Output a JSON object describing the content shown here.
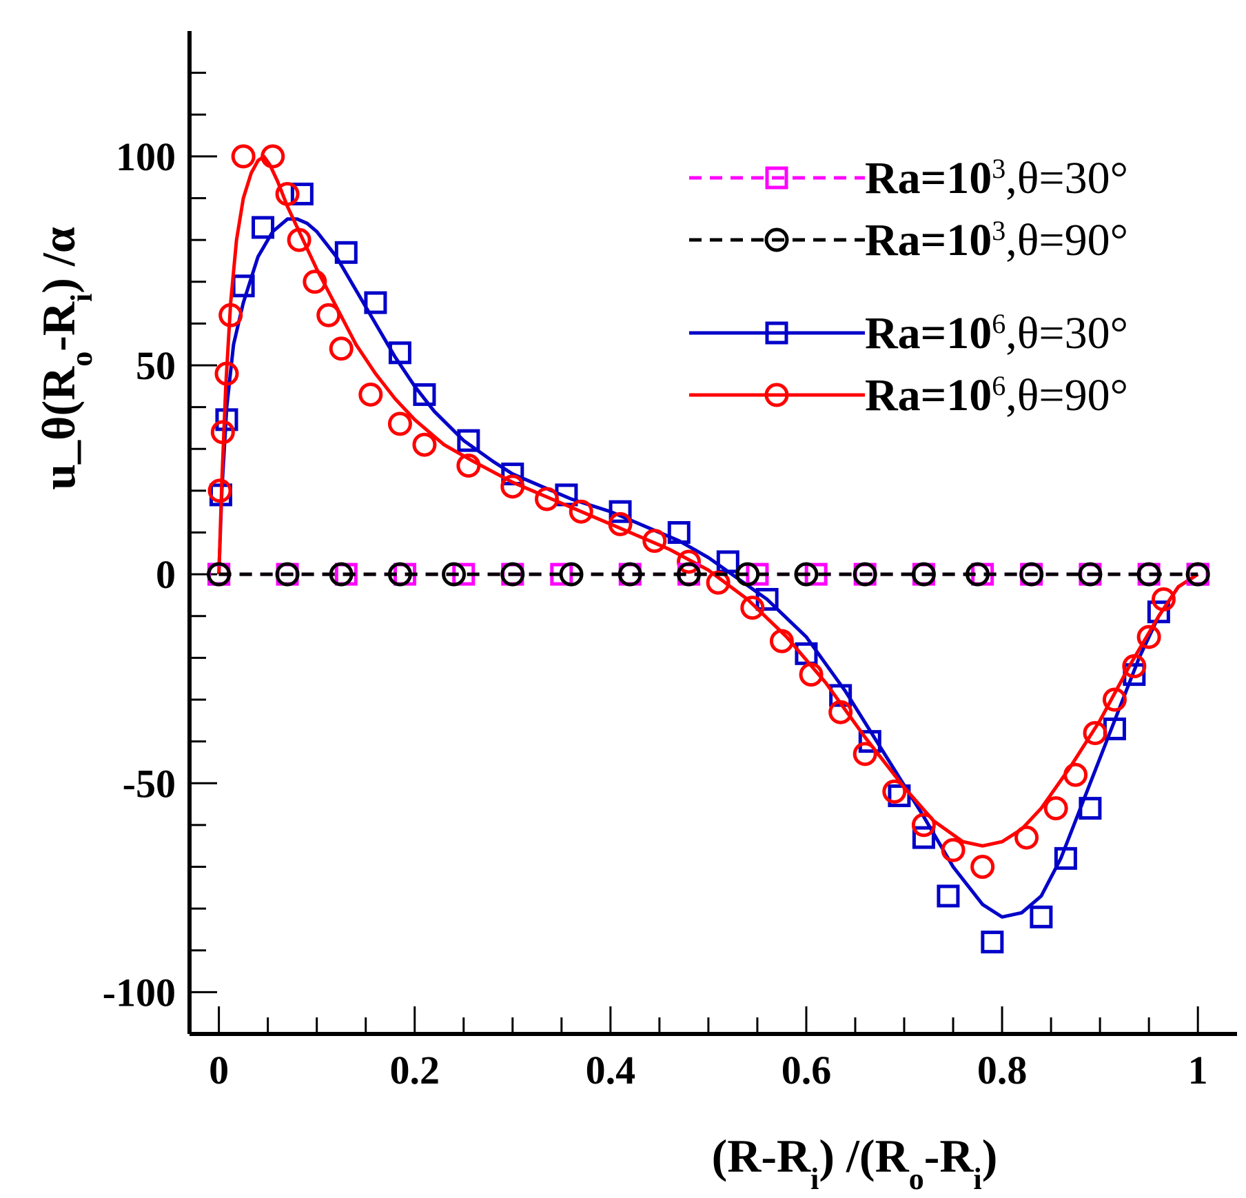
{
  "chart_data": {
    "type": "line",
    "xlabel": "(R-R_i) /(R_o-R_i)",
    "ylabel": "u_θ(R_o-R_i) /α",
    "xlim": [
      -0.03,
      1.04
    ],
    "ylim": [
      -110,
      130
    ],
    "x_ticks": [
      0,
      0.2,
      0.4,
      0.6,
      0.8,
      1
    ],
    "x_tick_labels": [
      "0",
      "0.2",
      "0.4",
      "0.6",
      "0.8",
      "1"
    ],
    "y_ticks": [
      -100,
      -50,
      0,
      50,
      100
    ],
    "y_tick_labels": [
      "-100",
      "-50",
      "0",
      "50",
      "100"
    ],
    "legend": [
      {
        "label_prefix": "Ra=10",
        "exponent": "3",
        "label_suffix": ",θ=30°",
        "series": "ra3_t30"
      },
      {
        "label_prefix": "Ra=10",
        "exponent": "3",
        "label_suffix": ",θ=90°",
        "series": "ra3_t90"
      },
      {
        "label_prefix": "Ra=10",
        "exponent": "6",
        "label_suffix": ",θ=30°",
        "series": "ra6_t30"
      },
      {
        "label_prefix": "Ra=10",
        "exponent": "6",
        "label_suffix": ",θ=90°",
        "series": "ra6_t90"
      }
    ],
    "series": [
      {
        "id": "ra3_t30",
        "name": "Ra=10^3,θ=30°",
        "color": "#ff00ff",
        "dash": "dashed",
        "marker": "square",
        "line_x": [
          0,
          1
        ],
        "line_y": [
          0,
          0
        ],
        "marker_x": [
          0,
          0.07,
          0.13,
          0.19,
          0.25,
          0.3,
          0.35,
          0.42,
          0.48,
          0.55,
          0.61,
          0.66,
          0.72,
          0.78,
          0.83,
          0.89,
          0.95,
          1.0
        ],
        "marker_y": [
          0,
          0,
          0,
          0,
          0,
          0,
          0,
          0,
          0,
          0,
          0,
          0,
          0,
          0,
          0,
          0,
          0,
          0
        ]
      },
      {
        "id": "ra3_t90",
        "name": "Ra=10^3,θ=90°",
        "color": "#000000",
        "dash": "dashed",
        "marker": "circle",
        "line_x": [
          0,
          1
        ],
        "line_y": [
          0,
          0
        ],
        "marker_x": [
          0,
          0.07,
          0.125,
          0.185,
          0.24,
          0.3,
          0.36,
          0.42,
          0.48,
          0.54,
          0.6,
          0.66,
          0.72,
          0.775,
          0.83,
          0.89,
          0.95,
          1.0
        ],
        "marker_y": [
          0,
          0,
          0,
          0,
          0,
          0,
          0,
          0,
          0,
          0,
          0,
          0,
          0,
          0,
          0,
          0,
          0,
          0
        ]
      },
      {
        "id": "ra6_t30",
        "name": "Ra=10^6,θ=30°",
        "color": "#0000c8",
        "dash": "solid",
        "marker": "square",
        "line_x": [
          0,
          0.003,
          0.008,
          0.015,
          0.025,
          0.04,
          0.055,
          0.07,
          0.08,
          0.09,
          0.1,
          0.12,
          0.14,
          0.16,
          0.18,
          0.2,
          0.22,
          0.25,
          0.28,
          0.3,
          0.33,
          0.36,
          0.4,
          0.44,
          0.47,
          0.5,
          0.53,
          0.56,
          0.6,
          0.64,
          0.68,
          0.72,
          0.75,
          0.78,
          0.8,
          0.82,
          0.84,
          0.86,
          0.88,
          0.9,
          0.92,
          0.94,
          0.96,
          0.98,
          1.0
        ],
        "line_y": [
          0,
          20,
          40,
          55,
          65,
          76,
          82,
          85,
          85,
          84,
          82,
          76,
          68,
          60,
          52,
          45,
          39,
          32,
          27,
          24,
          21,
          18,
          15,
          11,
          8,
          4,
          -1,
          -6,
          -15,
          -28,
          -43,
          -58,
          -70,
          -79,
          -82,
          -81,
          -77,
          -68,
          -56,
          -44,
          -32,
          -20,
          -10,
          -3,
          0
        ],
        "marker_x": [
          0,
          0.002,
          0.008,
          0.025,
          0.045,
          0.085,
          0.13,
          0.16,
          0.185,
          0.21,
          0.255,
          0.3,
          0.355,
          0.41,
          0.47,
          0.52,
          0.56,
          0.6,
          0.635,
          0.665,
          0.695,
          0.72,
          0.745,
          0.79,
          0.84,
          0.865,
          0.89,
          0.915,
          0.935,
          0.96,
          1.0
        ],
        "marker_y": [
          0,
          19,
          37,
          69,
          83,
          91,
          77,
          65,
          53,
          43,
          32,
          24,
          19,
          15,
          10,
          3,
          -6,
          -19,
          -29,
          -40,
          -53,
          -63,
          -77,
          -88,
          -82,
          -68,
          -56,
          -37,
          -24,
          -9,
          0
        ]
      },
      {
        "id": "ra6_t90",
        "name": "Ra=10^6,θ=90°",
        "color": "#ff0000",
        "dash": "solid",
        "marker": "circle",
        "line_x": [
          0,
          0.003,
          0.007,
          0.012,
          0.018,
          0.025,
          0.033,
          0.04,
          0.046,
          0.052,
          0.06,
          0.07,
          0.08,
          0.09,
          0.1,
          0.12,
          0.14,
          0.16,
          0.18,
          0.2,
          0.23,
          0.26,
          0.3,
          0.34,
          0.38,
          0.42,
          0.46,
          0.5,
          0.54,
          0.58,
          0.62,
          0.66,
          0.7,
          0.73,
          0.76,
          0.78,
          0.8,
          0.82,
          0.84,
          0.87,
          0.9,
          0.93,
          0.96,
          0.98,
          1.0
        ],
        "line_y": [
          0,
          22,
          45,
          65,
          80,
          90,
          96,
          99,
          100,
          98,
          94,
          88,
          83,
          78,
          73,
          64,
          55,
          48,
          42,
          37,
          31,
          27,
          22,
          18,
          14,
          10,
          6,
          1,
          -6,
          -15,
          -26,
          -39,
          -51,
          -59,
          -64,
          -65,
          -64,
          -61,
          -56,
          -46,
          -35,
          -22,
          -10,
          -3,
          0
        ],
        "marker_x": [
          0,
          0.001,
          0.004,
          0.008,
          0.012,
          0.025,
          0.055,
          0.07,
          0.082,
          0.098,
          0.112,
          0.125,
          0.155,
          0.185,
          0.21,
          0.255,
          0.3,
          0.335,
          0.37,
          0.41,
          0.445,
          0.48,
          0.51,
          0.545,
          0.575,
          0.605,
          0.635,
          0.66,
          0.69,
          0.72,
          0.75,
          0.78,
          0.825,
          0.855,
          0.875,
          0.895,
          0.915,
          0.935,
          0.95,
          0.965,
          1.0
        ],
        "marker_y": [
          0,
          20,
          34,
          48,
          62,
          100,
          100,
          91,
          80,
          70,
          62,
          54,
          43,
          36,
          31,
          26,
          21,
          18,
          15,
          12,
          8,
          3,
          -2,
          -8,
          -16,
          -24,
          -33,
          -43,
          -52,
          -60,
          -66,
          -70,
          -63,
          -56,
          -48,
          -38,
          -30,
          -22,
          -15,
          -6,
          0
        ]
      }
    ]
  }
}
